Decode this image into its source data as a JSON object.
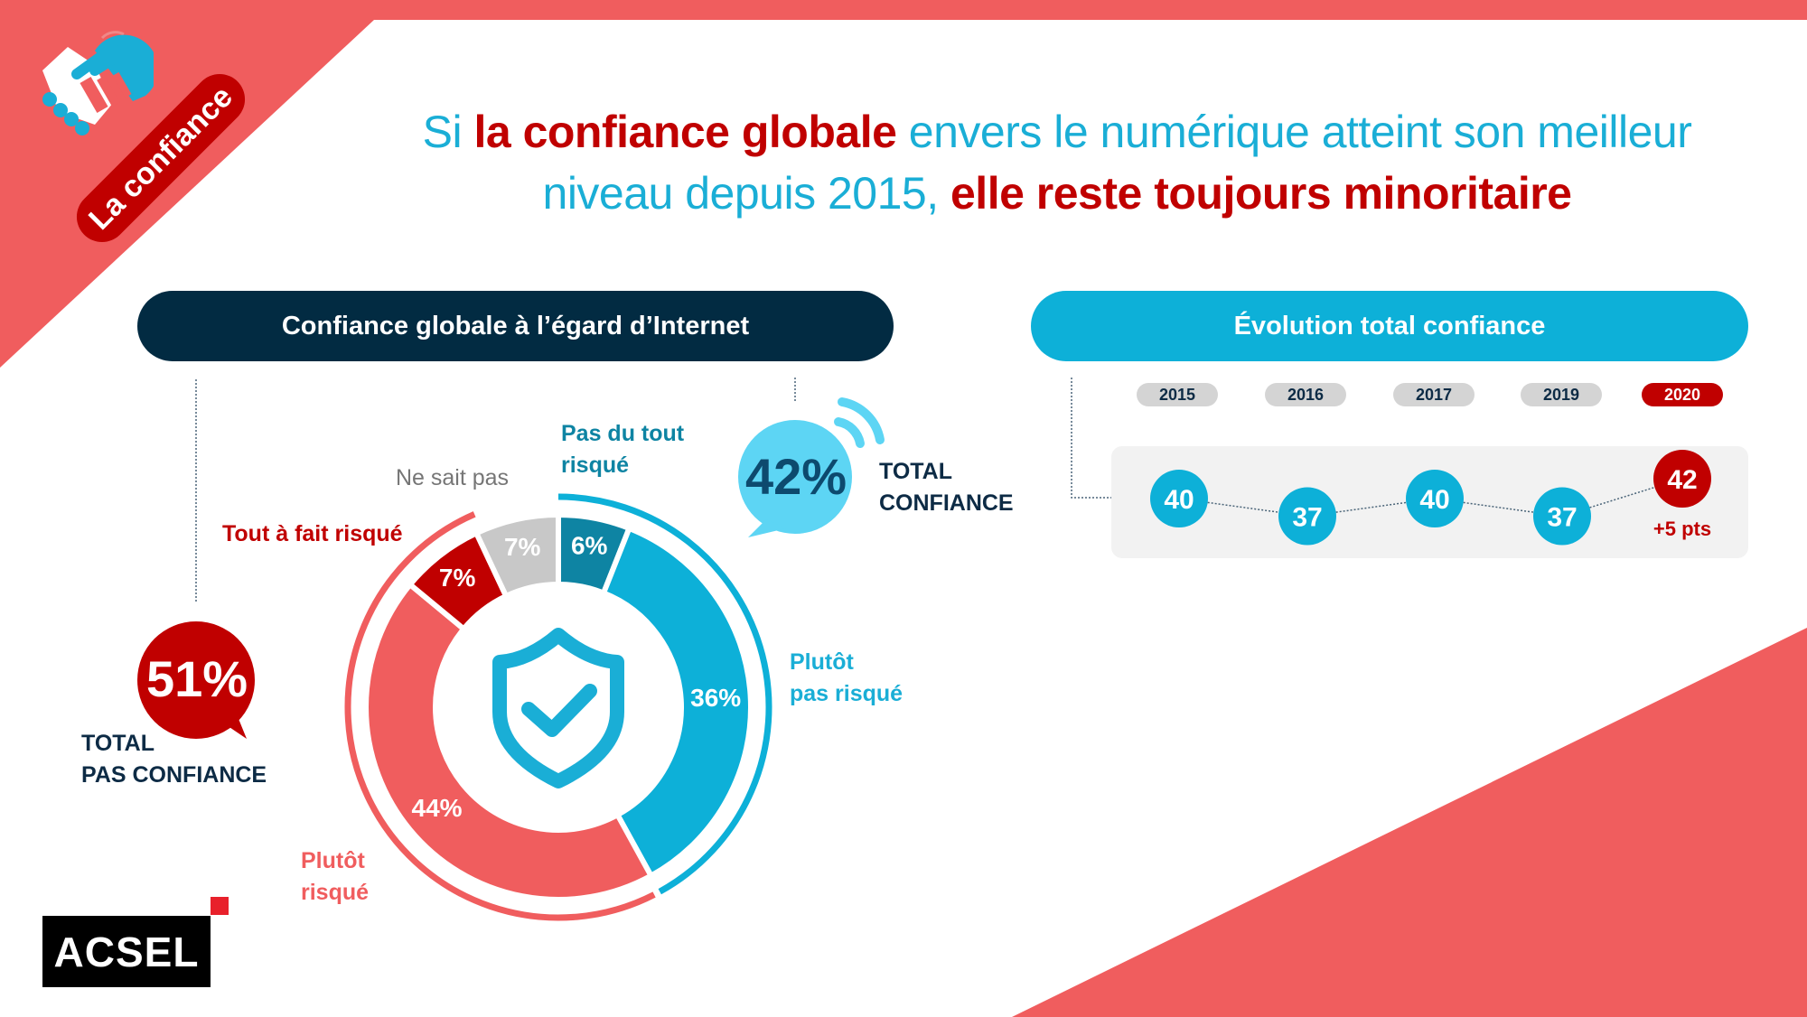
{
  "section_tag": "La confiance",
  "title": {
    "part1": "Si ",
    "part2": "la confiance globale",
    "part3": " envers le numérique atteint son meilleur",
    "part4": "niveau depuis 2015, ",
    "part5": "elle reste toujours minoritaire"
  },
  "left_panel": {
    "header": "Confiance globale à l’égard d’Internet",
    "total_pas_confiance": {
      "value": "51%",
      "label_line1": "TOTAL",
      "label_line2": "PAS CONFIANCE"
    },
    "total_confiance": {
      "value": "42%",
      "label_line1": "TOTAL",
      "label_line2": "CONFIANCE"
    }
  },
  "right_panel": {
    "header": "Évolution total confiance",
    "delta": "+5 pts"
  },
  "logo": "ACSEL",
  "colors": {
    "coral": "#F05D5E",
    "red": "#C00000",
    "blue": "#0DB0D8",
    "teal": "#0E84A3",
    "grey": "#C8C8C8",
    "navy": "#022B42",
    "light_blue": "#5DD5F4"
  },
  "chart_data": [
    {
      "type": "pie",
      "title": "Confiance globale à l’égard d’Internet",
      "slices": [
        {
          "name": "Pas du tout risqué",
          "label": "Pas du tout risqué",
          "label_line1": "Pas du tout",
          "label_line2": "risqué",
          "value": 6,
          "value_label": "6%",
          "color": "#0E84A3"
        },
        {
          "name": "Plutôt pas risqué",
          "label_line1": "Plutôt",
          "label_line2": "pas risqué",
          "value": 36,
          "value_label": "36%",
          "color": "#0DB0D8"
        },
        {
          "name": "Plutôt risqué",
          "label_line1": "Plutôt",
          "label_line2": "risqué",
          "value": 44,
          "value_label": "44%",
          "color": "#F05D5E"
        },
        {
          "name": "Tout à fait risqué",
          "label_line1": "Tout à fait risqué",
          "value": 7,
          "value_label": "7%",
          "color": "#C00000"
        },
        {
          "name": "Ne sait pas",
          "label_line1": "Ne sait pas",
          "value": 7,
          "value_label": "7%",
          "color": "#C8C8C8"
        }
      ],
      "groups": [
        {
          "name": "Total confiance",
          "value": 42,
          "color": "#0DB0D8"
        },
        {
          "name": "Total pas confiance",
          "value": 51,
          "color": "#F05D5E"
        }
      ]
    },
    {
      "type": "line",
      "title": "Évolution total confiance",
      "categories": [
        "2015",
        "2016",
        "2017",
        "2019",
        "2020"
      ],
      "values": [
        40,
        37,
        40,
        37,
        42
      ],
      "highlight": "2020"
    }
  ]
}
